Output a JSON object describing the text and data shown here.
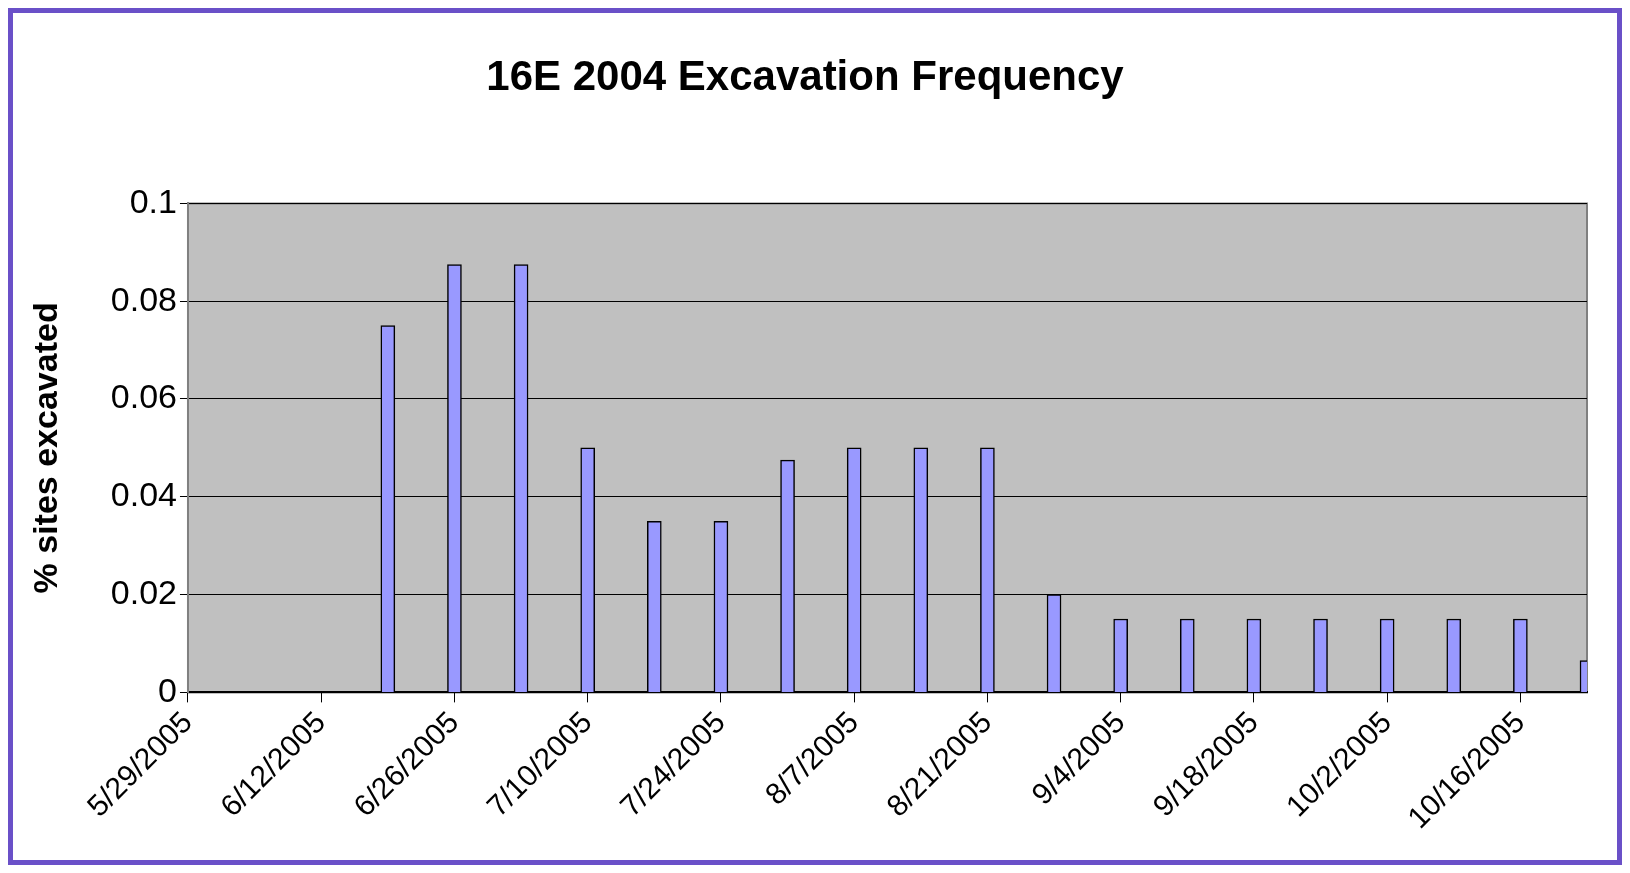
{
  "chart_data": {
    "type": "bar",
    "title": "16E 2004 Excavation Frequency",
    "ylabel": "% sites excavated",
    "x": [
      "2005-06-19",
      "2005-06-26",
      "2005-07-03",
      "2005-07-10",
      "2005-07-17",
      "2005-07-24",
      "2005-07-31",
      "2005-08-07",
      "2005-08-14",
      "2005-08-21",
      "2005-08-28",
      "2005-09-04",
      "2005-09-11",
      "2005-09-18",
      "2005-09-25",
      "2005-10-02",
      "2005-10-09",
      "2005-10-16",
      "2005-10-23"
    ],
    "values": [
      0.075,
      0.0875,
      0.0875,
      0.05,
      0.035,
      0.035,
      0.0475,
      0.05,
      0.05,
      0.05,
      0.02,
      0.015,
      0.015,
      0.015,
      0.015,
      0.015,
      0.015,
      0.015,
      0.0065
    ],
    "color": "#9999ff",
    "xlim": [
      "2005-05-29",
      "2005-10-23"
    ],
    "xticks": [
      {
        "value": "2005-05-29",
        "label": "5/29/2005"
      },
      {
        "value": "2005-06-12",
        "label": "6/12/2005"
      },
      {
        "value": "2005-06-26",
        "label": "6/26/2005"
      },
      {
        "value": "2005-07-10",
        "label": "7/10/2005"
      },
      {
        "value": "2005-07-24",
        "label": "7/24/2005"
      },
      {
        "value": "2005-08-07",
        "label": "8/7/2005"
      },
      {
        "value": "2005-08-21",
        "label": "8/21/2005"
      },
      {
        "value": "2005-09-04",
        "label": "9/4/2005"
      },
      {
        "value": "2005-09-18",
        "label": "9/18/2005"
      },
      {
        "value": "2005-10-02",
        "label": "10/2/2005"
      },
      {
        "value": "2005-10-16",
        "label": "10/16/2005"
      }
    ],
    "ylim": [
      0,
      0.1
    ],
    "yticks": [
      0,
      0.02,
      0.04,
      0.06,
      0.08,
      0.1
    ],
    "grid": "y",
    "legend": false
  }
}
